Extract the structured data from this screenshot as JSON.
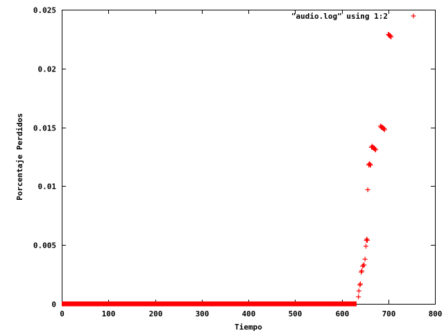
{
  "chart_data": {
    "type": "scatter",
    "xlabel": "Tiempo",
    "ylabel": "Porcentaje Perdidos",
    "xlim": [
      0,
      800
    ],
    "ylim": [
      0,
      0.025
    ],
    "xticks": [
      0,
      100,
      200,
      300,
      400,
      500,
      600,
      700,
      800
    ],
    "yticks": [
      0,
      0.005,
      0.01,
      0.015,
      0.02,
      0.025
    ],
    "xtick_labels": [
      "0",
      "100",
      "200",
      "300",
      "400",
      "500",
      "600",
      "700",
      "800"
    ],
    "ytick_labels": [
      "0",
      "0.005",
      "0.01",
      "0.015",
      "0.02",
      "0.025"
    ],
    "grid": false,
    "legend_position": "top-right",
    "marker_color": "#ff0000",
    "series": [
      {
        "name": "\"audio.log\" using 1:2",
        "marker": "plus",
        "baseline": {
          "x_start": 0,
          "x_end": 632,
          "y": 0
        },
        "points": [
          [
            636,
            0.0006
          ],
          [
            637,
            0.0011
          ],
          [
            639,
            0.0016
          ],
          [
            640,
            0.0017
          ],
          [
            642,
            0.0027
          ],
          [
            643,
            0.0028
          ],
          [
            645,
            0.0032
          ],
          [
            647,
            0.0033
          ],
          [
            648,
            0.0033
          ],
          [
            650,
            0.0038
          ],
          [
            652,
            0.0049
          ],
          [
            653,
            0.0054
          ],
          [
            654,
            0.0055
          ],
          [
            655,
            0.0054
          ],
          [
            656,
            0.0097
          ],
          [
            658,
            0.0118
          ],
          [
            659,
            0.0119
          ],
          [
            660,
            0.0119
          ],
          [
            661,
            0.0118
          ],
          [
            662,
            0.0118
          ],
          [
            664,
            0.0133
          ],
          [
            665,
            0.0134
          ],
          [
            666,
            0.0133
          ],
          [
            667,
            0.0133
          ],
          [
            668,
            0.0133
          ],
          [
            669,
            0.0132
          ],
          [
            670,
            0.0132
          ],
          [
            671,
            0.0132
          ],
          [
            672,
            0.0131
          ],
          [
            673,
            0.0131
          ],
          [
            683,
            0.0151
          ],
          [
            684,
            0.0151
          ],
          [
            685,
            0.015
          ],
          [
            686,
            0.015
          ],
          [
            687,
            0.015
          ],
          [
            688,
            0.015
          ],
          [
            689,
            0.0149
          ],
          [
            690,
            0.0149
          ],
          [
            691,
            0.0149
          ],
          [
            692,
            0.0148
          ],
          [
            700,
            0.0229
          ],
          [
            701,
            0.0229
          ],
          [
            702,
            0.0228
          ],
          [
            703,
            0.0228
          ],
          [
            704,
            0.0228
          ],
          [
            705,
            0.0227
          ],
          [
            706,
            0.0227
          ]
        ]
      }
    ]
  }
}
